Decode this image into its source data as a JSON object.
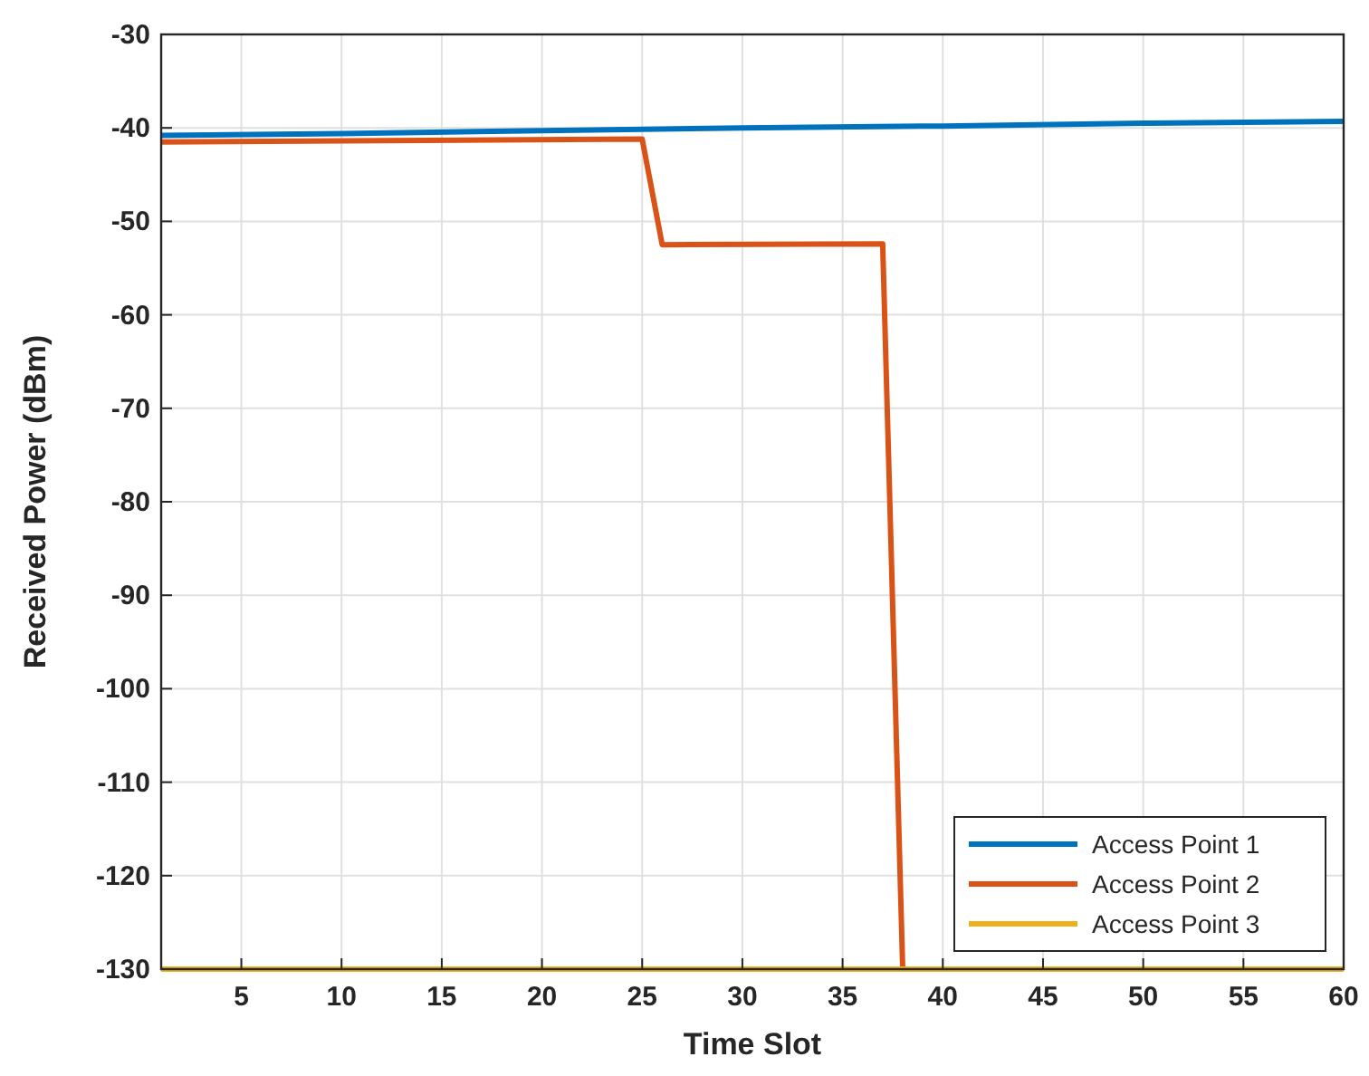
{
  "chart_data": {
    "type": "line",
    "xlabel": "Time Slot",
    "ylabel": "Received Power (dBm)",
    "xlim": [
      1,
      60
    ],
    "xticks": [
      5,
      10,
      15,
      20,
      25,
      30,
      35,
      40,
      45,
      50,
      55,
      60
    ],
    "ylim": [
      -130,
      -30
    ],
    "yticks": [
      -130,
      -120,
      -110,
      -100,
      -90,
      -80,
      -70,
      -60,
      -50,
      -40,
      -30
    ],
    "grid": true,
    "legend": "bottom right",
    "line_style": "solid",
    "series": [
      {
        "name": "Access Point 1",
        "color": "#0072bd",
        "x": [
          1,
          10,
          20,
          30,
          40,
          50,
          60
        ],
        "values": [
          -40.8,
          -40.6,
          -40.3,
          -40.0,
          -39.8,
          -39.5,
          -39.3
        ]
      },
      {
        "name": "Access Point 2",
        "color": "#d95319",
        "x": [
          1,
          25,
          26,
          37,
          38,
          60
        ],
        "values": [
          -41.5,
          -41.2,
          -52.5,
          -52.4,
          -130,
          -130
        ]
      },
      {
        "name": "Access Point 3",
        "color": "#edb120",
        "x": [
          1,
          60
        ],
        "values": [
          -130,
          -130
        ]
      }
    ]
  }
}
